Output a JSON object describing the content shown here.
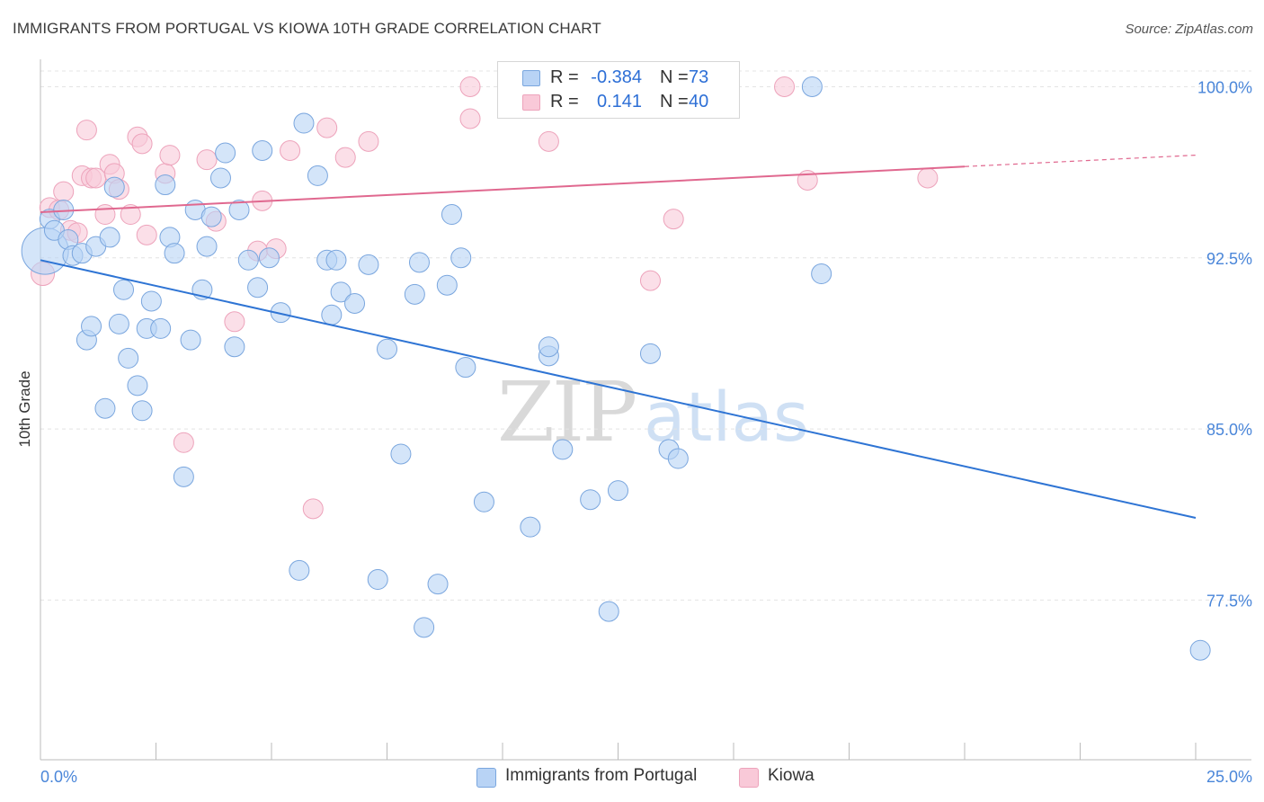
{
  "title": "IMMIGRANTS FROM PORTUGAL VS KIOWA 10TH GRADE CORRELATION CHART",
  "source": "Source: ZipAtlas.com",
  "watermark": {
    "zip": "ZIP",
    "atlas": "atlas"
  },
  "colors": {
    "blue_fill": "#b8d3f5",
    "blue_stroke": "#7aa6de",
    "blue_line": "#2e74d4",
    "pink_fill": "#f9c9d8",
    "pink_stroke": "#eda3bb",
    "pink_line": "#e0688f",
    "axis_text_blue": "#4a86d9",
    "grid": "#e4e4e4"
  },
  "legend": {
    "rows": [
      {
        "r_label": "R =",
        "r_value": "-0.384",
        "n_label": "N =",
        "n_value": "73",
        "color": "blue"
      },
      {
        "r_label": "R =",
        "r_value": "0.141",
        "n_label": "N =",
        "n_value": "40",
        "color": "pink"
      }
    ]
  },
  "bottom_legend": [
    {
      "label": "Immigrants from Portugal",
      "color": "blue"
    },
    {
      "label": "Kiowa",
      "color": "pink"
    }
  ],
  "chart_data": {
    "type": "scatter",
    "title": "IMMIGRANTS FROM PORTUGAL VS KIOWA 10TH GRADE CORRELATION CHART",
    "xlabel": "",
    "ylabel": "10th Grade",
    "xlim": [
      0,
      25
    ],
    "ylim": [
      70.5,
      101.2
    ],
    "x_tick_labels": [
      "0.0%",
      "25.0%"
    ],
    "y_ticks": [
      77.5,
      85.0,
      92.5,
      100.0
    ],
    "y_tick_labels": [
      "77.5%",
      "85.0%",
      "92.5%",
      "100.0%"
    ],
    "series": [
      {
        "name": "Immigrants from Portugal",
        "color": "blue",
        "r": -0.384,
        "n": 73,
        "trend": {
          "x": [
            0,
            25
          ],
          "y": [
            92.4,
            81.1
          ]
        },
        "points": [
          [
            0.1,
            92.8,
            26
          ],
          [
            0.2,
            94.2,
            11
          ],
          [
            0.3,
            93.7,
            11
          ],
          [
            0.5,
            94.6,
            11
          ],
          [
            0.6,
            93.3,
            11
          ],
          [
            0.7,
            92.6,
            11
          ],
          [
            0.9,
            92.7,
            11
          ],
          [
            1.0,
            88.9,
            11
          ],
          [
            1.1,
            89.5,
            11
          ],
          [
            1.2,
            93.0,
            11
          ],
          [
            1.4,
            85.9,
            11
          ],
          [
            1.5,
            93.4,
            11
          ],
          [
            1.6,
            95.6,
            11
          ],
          [
            1.7,
            89.6,
            11
          ],
          [
            1.8,
            91.1,
            11
          ],
          [
            1.9,
            88.1,
            11
          ],
          [
            2.1,
            86.9,
            11
          ],
          [
            2.2,
            85.8,
            11
          ],
          [
            2.3,
            89.4,
            11
          ],
          [
            2.4,
            90.6,
            11
          ],
          [
            2.6,
            89.4,
            11
          ],
          [
            2.7,
            95.7,
            11
          ],
          [
            2.8,
            93.4,
            11
          ],
          [
            2.9,
            92.7,
            11
          ],
          [
            3.1,
            82.9,
            11
          ],
          [
            3.25,
            88.9,
            11
          ],
          [
            3.35,
            94.6,
            11
          ],
          [
            3.5,
            91.1,
            11
          ],
          [
            3.6,
            93.0,
            11
          ],
          [
            3.7,
            94.3,
            11
          ],
          [
            3.9,
            96.0,
            11
          ],
          [
            4.0,
            97.1,
            11
          ],
          [
            4.2,
            88.6,
            11
          ],
          [
            4.3,
            94.6,
            11
          ],
          [
            4.5,
            92.4,
            11
          ],
          [
            4.7,
            91.2,
            11
          ],
          [
            4.8,
            97.2,
            11
          ],
          [
            4.95,
            92.5,
            11
          ],
          [
            5.2,
            90.1,
            11
          ],
          [
            5.6,
            78.8,
            11
          ],
          [
            5.7,
            98.4,
            11
          ],
          [
            6.0,
            96.1,
            11
          ],
          [
            6.2,
            92.4,
            11
          ],
          [
            6.3,
            90.0,
            11
          ],
          [
            6.4,
            92.4,
            11
          ],
          [
            6.5,
            91.0,
            11
          ],
          [
            6.8,
            90.5,
            11
          ],
          [
            7.1,
            92.2,
            11
          ],
          [
            7.3,
            78.4,
            11
          ],
          [
            7.5,
            88.5,
            11
          ],
          [
            7.8,
            83.9,
            11
          ],
          [
            8.1,
            90.9,
            11
          ],
          [
            8.2,
            92.3,
            11
          ],
          [
            8.3,
            76.3,
            11
          ],
          [
            8.6,
            78.2,
            11
          ],
          [
            8.8,
            91.3,
            11
          ],
          [
            8.9,
            94.4,
            11
          ],
          [
            9.1,
            92.5,
            11
          ],
          [
            9.2,
            87.7,
            11
          ],
          [
            9.6,
            81.8,
            11
          ],
          [
            10.6,
            80.7,
            11
          ],
          [
            11.0,
            88.2,
            11
          ],
          [
            11.0,
            88.6,
            11
          ],
          [
            11.3,
            84.1,
            11
          ],
          [
            11.9,
            81.9,
            11
          ],
          [
            12.3,
            77.0,
            11
          ],
          [
            12.5,
            82.3,
            11
          ],
          [
            13.2,
            88.3,
            11
          ],
          [
            13.6,
            84.1,
            11
          ],
          [
            13.8,
            83.7,
            11
          ],
          [
            16.7,
            100.0,
            11
          ],
          [
            16.9,
            91.8,
            11
          ],
          [
            25.1,
            75.3,
            11
          ]
        ]
      },
      {
        "name": "Kiowa",
        "color": "pink",
        "r": 0.141,
        "n": 40,
        "trend": {
          "x": [
            0,
            20
          ],
          "y": [
            94.5,
            96.5
          ],
          "dashed_x": [
            20,
            25
          ],
          "dashed_y": [
            96.5,
            97.0
          ]
        },
        "points": [
          [
            0.05,
            91.8,
            13
          ],
          [
            0.2,
            94.7,
            11
          ],
          [
            0.4,
            94.6,
            11
          ],
          [
            0.5,
            95.4,
            11
          ],
          [
            0.65,
            93.7,
            11
          ],
          [
            0.8,
            93.6,
            11
          ],
          [
            0.9,
            96.1,
            11
          ],
          [
            1.0,
            98.1,
            11
          ],
          [
            1.1,
            96.0,
            11
          ],
          [
            1.2,
            96.0,
            11
          ],
          [
            1.4,
            94.4,
            11
          ],
          [
            1.5,
            96.6,
            11
          ],
          [
            1.6,
            96.2,
            11
          ],
          [
            1.7,
            95.5,
            11
          ],
          [
            1.95,
            94.4,
            11
          ],
          [
            2.1,
            97.8,
            11
          ],
          [
            2.2,
            97.5,
            11
          ],
          [
            2.3,
            93.5,
            11
          ],
          [
            2.7,
            96.2,
            11
          ],
          [
            2.8,
            97.0,
            11
          ],
          [
            3.1,
            84.4,
            11
          ],
          [
            3.6,
            96.8,
            11
          ],
          [
            3.8,
            94.1,
            11
          ],
          [
            4.2,
            89.7,
            11
          ],
          [
            4.7,
            92.8,
            11
          ],
          [
            4.8,
            95.0,
            11
          ],
          [
            5.1,
            92.9,
            11
          ],
          [
            5.4,
            97.2,
            11
          ],
          [
            5.9,
            81.5,
            11
          ],
          [
            6.2,
            98.2,
            11
          ],
          [
            6.6,
            96.9,
            11
          ],
          [
            7.1,
            97.6,
            11
          ],
          [
            9.3,
            100.0,
            11
          ],
          [
            9.3,
            98.6,
            11
          ],
          [
            11.0,
            97.6,
            11
          ],
          [
            13.2,
            91.5,
            11
          ],
          [
            13.7,
            94.2,
            11
          ],
          [
            16.1,
            100.0,
            11
          ],
          [
            16.6,
            95.9,
            11
          ],
          [
            19.2,
            96.0,
            11
          ]
        ]
      }
    ]
  }
}
